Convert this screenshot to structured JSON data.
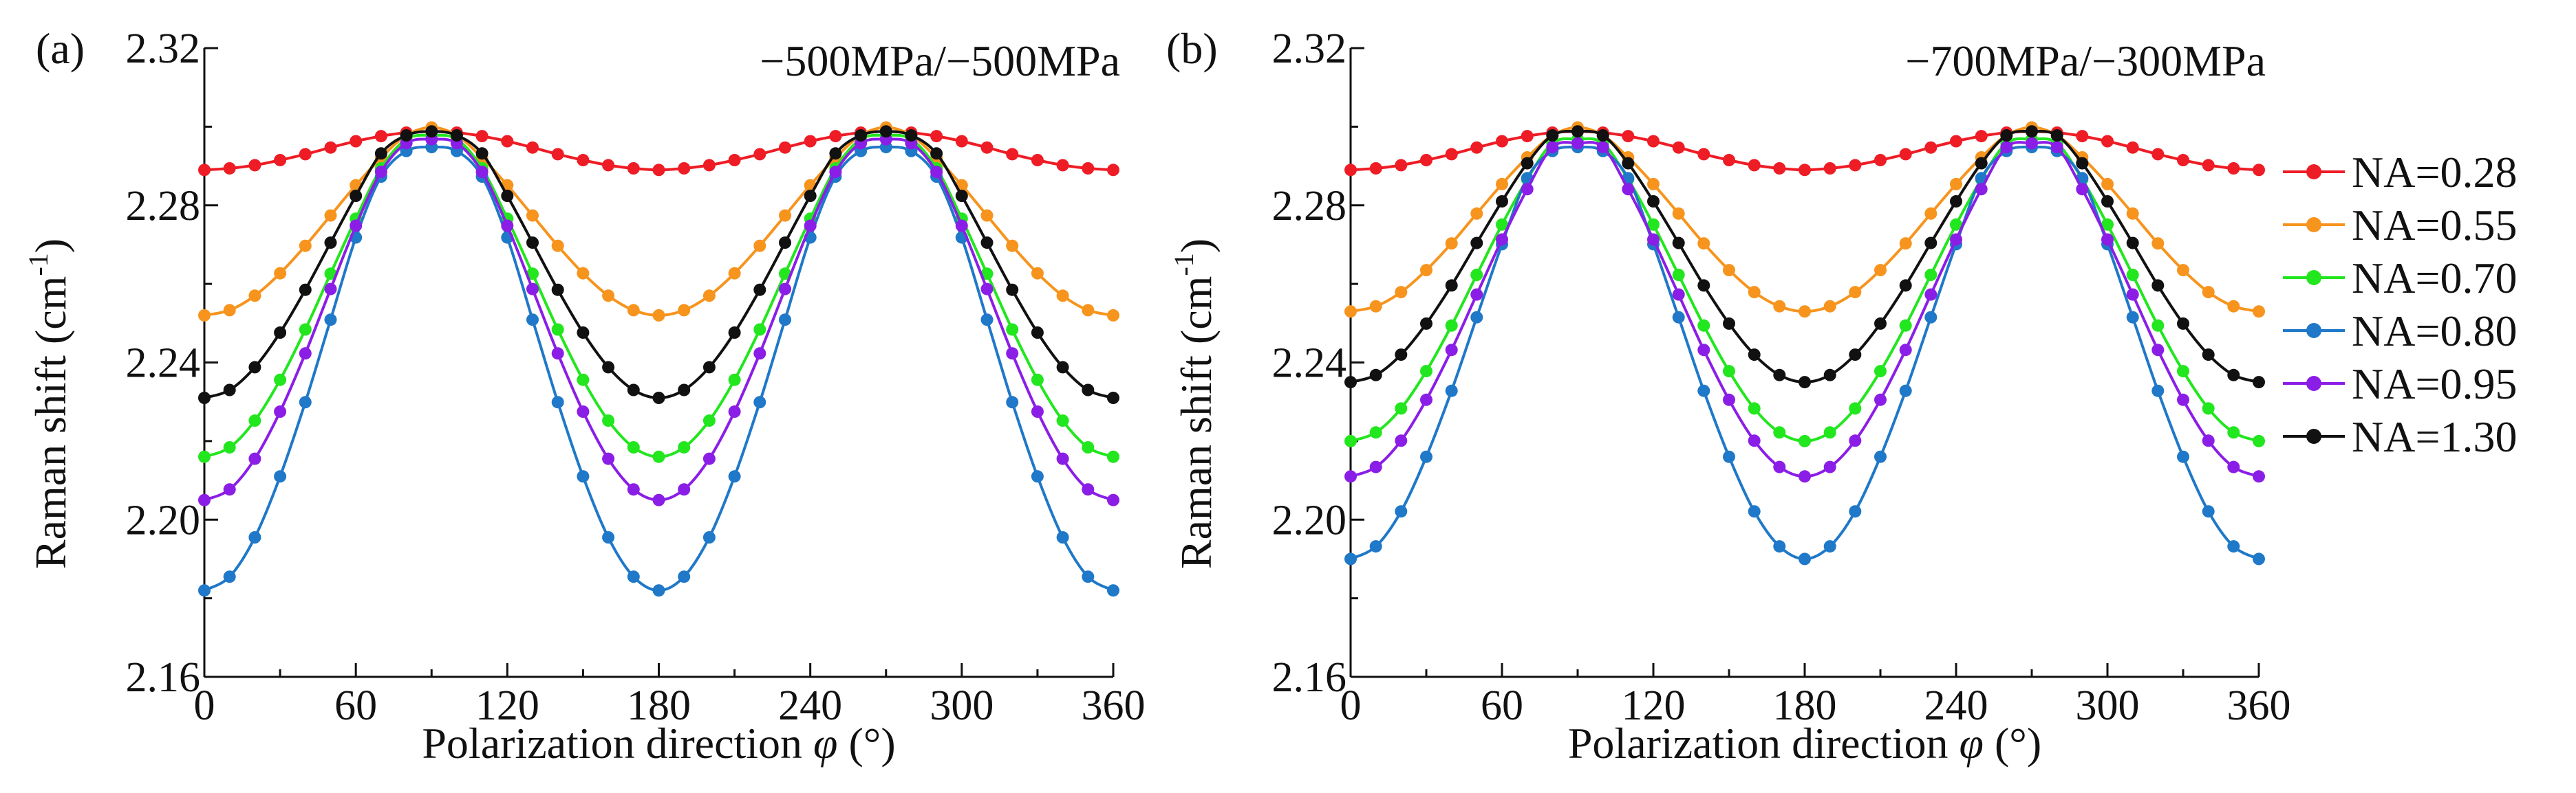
{
  "chart_data": [
    {
      "type": "line",
      "panel_label": "(a)",
      "title": "−500MPa/−500MPa",
      "xlabel_prefix": "Polarization direction ",
      "xlabel_symbol": "φ",
      "xlabel_suffix": " (°)",
      "ylabel_prefix": "Raman shift (cm",
      "ylabel_sup": "-1",
      "ylabel_suffix": ")",
      "xlim": [
        0,
        360
      ],
      "ylim": [
        2.16,
        2.32
      ],
      "xticks": [
        "0",
        "60",
        "120",
        "180",
        "240",
        "300",
        "360"
      ],
      "yticks": [
        "2.16",
        "2.20",
        "2.24",
        "2.28",
        "2.32"
      ],
      "x": [
        0,
        10,
        20,
        30,
        40,
        50,
        60,
        70,
        80,
        90,
        100,
        110,
        120,
        130,
        140,
        150,
        160,
        170,
        180,
        190,
        200,
        210,
        220,
        230,
        240,
        250,
        260,
        270,
        280,
        290,
        300,
        310,
        320,
        330,
        340,
        350,
        360
      ],
      "series": [
        {
          "name": "NA=0.28",
          "color": "#ee1c25",
          "values": [
            2.289,
            2.2894,
            2.2902,
            2.2915,
            2.293,
            2.2947,
            2.2963,
            2.2976,
            2.2985,
            2.2988,
            2.2985,
            2.2976,
            2.2963,
            2.2947,
            2.293,
            2.2915,
            2.2902,
            2.2894,
            2.289,
            2.2894,
            2.2902,
            2.2915,
            2.293,
            2.2947,
            2.2963,
            2.2976,
            2.2985,
            2.2988,
            2.2985,
            2.2976,
            2.2963,
            2.2947,
            2.293,
            2.2915,
            2.2902,
            2.2894,
            2.289
          ]
        },
        {
          "name": "NA=0.55",
          "color": "#f7941d",
          "values": [
            2.252,
            2.2533,
            2.257,
            2.2627,
            2.2697,
            2.2774,
            2.2851,
            2.2921,
            2.2978,
            2.2998,
            2.2978,
            2.2921,
            2.2851,
            2.2774,
            2.2697,
            2.2627,
            2.257,
            2.2533,
            2.252,
            2.2533,
            2.257,
            2.2627,
            2.2697,
            2.2774,
            2.2851,
            2.2921,
            2.2978,
            2.2998,
            2.2978,
            2.2921,
            2.2851,
            2.2774,
            2.2697,
            2.2627,
            2.257,
            2.2533,
            2.252
          ]
        },
        {
          "name": "NA=0.70",
          "color": "#22e61e",
          "values": [
            2.216,
            2.2184,
            2.2252,
            2.2356,
            2.2484,
            2.2626,
            2.2766,
            2.2894,
            2.2968,
            2.2978,
            2.2968,
            2.2894,
            2.2766,
            2.2626,
            2.2484,
            2.2356,
            2.2252,
            2.2184,
            2.216,
            2.2184,
            2.2252,
            2.2356,
            2.2484,
            2.2626,
            2.2766,
            2.2894,
            2.2968,
            2.2978,
            2.2968,
            2.2894,
            2.2766,
            2.2626,
            2.2484,
            2.2356,
            2.2252,
            2.2184,
            2.216
          ]
        },
        {
          "name": "NA=0.80",
          "color": "#1f78c8",
          "values": [
            2.182,
            2.1855,
            2.1955,
            2.211,
            2.2299,
            2.2509,
            2.2718,
            2.2873,
            2.2938,
            2.2948,
            2.2938,
            2.2873,
            2.2718,
            2.2509,
            2.2299,
            2.211,
            2.1955,
            2.1855,
            2.182,
            2.1855,
            2.1955,
            2.211,
            2.2299,
            2.2509,
            2.2718,
            2.2873,
            2.2938,
            2.2948,
            2.2938,
            2.2873,
            2.2718,
            2.2509,
            2.2299,
            2.211,
            2.1955,
            2.1855,
            2.182
          ]
        },
        {
          "name": "NA=0.95",
          "color": "#8b1ee6",
          "values": [
            2.205,
            2.2077,
            2.2155,
            2.2275,
            2.2423,
            2.2587,
            2.2748,
            2.2885,
            2.2958,
            2.2968,
            2.2958,
            2.2885,
            2.2748,
            2.2587,
            2.2423,
            2.2275,
            2.2155,
            2.2077,
            2.205,
            2.2077,
            2.2155,
            2.2275,
            2.2423,
            2.2587,
            2.2748,
            2.2885,
            2.2958,
            2.2968,
            2.2958,
            2.2885,
            2.2748,
            2.2587,
            2.2423,
            2.2275,
            2.2155,
            2.2077,
            2.205
          ]
        },
        {
          "name": "NA=1.30",
          "color": "#111111",
          "values": [
            2.231,
            2.233,
            2.2388,
            2.2476,
            2.2585,
            2.2705,
            2.2824,
            2.2932,
            2.2978,
            2.2988,
            2.2978,
            2.2932,
            2.2824,
            2.2705,
            2.2585,
            2.2476,
            2.2388,
            2.233,
            2.231,
            2.233,
            2.2388,
            2.2476,
            2.2585,
            2.2705,
            2.2824,
            2.2932,
            2.2978,
            2.2988,
            2.2978,
            2.2932,
            2.2824,
            2.2705,
            2.2585,
            2.2476,
            2.2388,
            2.233,
            2.231
          ]
        }
      ]
    },
    {
      "type": "line",
      "panel_label": "(b)",
      "title": "−700MPa/−300MPa",
      "xlabel_prefix": "Polarization direction ",
      "xlabel_symbol": "φ",
      "xlabel_suffix": " (°)",
      "ylabel_prefix": "Raman shift (cm",
      "ylabel_sup": "-1",
      "ylabel_suffix": ")",
      "xlim": [
        0,
        360
      ],
      "ylim": [
        2.16,
        2.32
      ],
      "xticks": [
        "0",
        "60",
        "120",
        "180",
        "240",
        "300",
        "360"
      ],
      "yticks": [
        "2.16",
        "2.20",
        "2.24",
        "2.28",
        "2.32"
      ],
      "x": [
        0,
        10,
        20,
        30,
        40,
        50,
        60,
        70,
        80,
        90,
        100,
        110,
        120,
        130,
        140,
        150,
        160,
        170,
        180,
        190,
        200,
        210,
        220,
        230,
        240,
        250,
        260,
        270,
        280,
        290,
        300,
        310,
        320,
        330,
        340,
        350,
        360
      ],
      "series": [
        {
          "name": "NA=0.28",
          "color": "#ee1c25",
          "values": [
            2.289,
            2.2894,
            2.2902,
            2.2915,
            2.293,
            2.2947,
            2.2963,
            2.2976,
            2.2985,
            2.2988,
            2.2985,
            2.2976,
            2.2963,
            2.2947,
            2.293,
            2.2915,
            2.2902,
            2.2894,
            2.289,
            2.2894,
            2.2902,
            2.2915,
            2.293,
            2.2947,
            2.2963,
            2.2976,
            2.2985,
            2.2988,
            2.2985,
            2.2976,
            2.2963,
            2.2947,
            2.293,
            2.2915,
            2.2902,
            2.2894,
            2.289
          ]
        },
        {
          "name": "NA=0.55",
          "color": "#f7941d",
          "values": [
            2.253,
            2.2543,
            2.2579,
            2.2635,
            2.2703,
            2.2779,
            2.2854,
            2.2922,
            2.2978,
            2.2998,
            2.2978,
            2.2922,
            2.2854,
            2.2779,
            2.2703,
            2.2635,
            2.2579,
            2.2543,
            2.253,
            2.2543,
            2.2579,
            2.2635,
            2.2703,
            2.2779,
            2.2854,
            2.2922,
            2.2978,
            2.2998,
            2.2978,
            2.2922,
            2.2854,
            2.2779,
            2.2703,
            2.2635,
            2.2579,
            2.2543,
            2.253
          ]
        },
        {
          "name": "NA=0.70",
          "color": "#22e61e",
          "values": [
            2.22,
            2.2222,
            2.2283,
            2.2378,
            2.2494,
            2.2623,
            2.2751,
            2.2866,
            2.2958,
            2.2968,
            2.2958,
            2.2866,
            2.2751,
            2.2623,
            2.2494,
            2.2378,
            2.2283,
            2.2222,
            2.22,
            2.2222,
            2.2283,
            2.2378,
            2.2494,
            2.2623,
            2.2751,
            2.2866,
            2.2958,
            2.2968,
            2.2958,
            2.2866,
            2.2751,
            2.2623,
            2.2494,
            2.2378,
            2.2283,
            2.2222,
            2.22
          ]
        },
        {
          "name": "NA=0.80",
          "color": "#1f78c8",
          "values": [
            2.19,
            2.1932,
            2.2021,
            2.216,
            2.2328,
            2.2515,
            2.2701,
            2.2869,
            2.2938,
            2.2948,
            2.2938,
            2.2869,
            2.2701,
            2.2515,
            2.2328,
            2.216,
            2.2021,
            2.1932,
            2.19,
            2.1932,
            2.2021,
            2.216,
            2.2328,
            2.2515,
            2.2701,
            2.2869,
            2.2938,
            2.2948,
            2.2938,
            2.2869,
            2.2701,
            2.2515,
            2.2328,
            2.216,
            2.2021,
            2.1932,
            2.19
          ]
        },
        {
          "name": "NA=0.95",
          "color": "#8b1ee6",
          "values": [
            2.211,
            2.2134,
            2.2201,
            2.2305,
            2.2432,
            2.2573,
            2.2713,
            2.2841,
            2.2948,
            2.2958,
            2.2948,
            2.2841,
            2.2713,
            2.2573,
            2.2432,
            2.2305,
            2.2201,
            2.2134,
            2.211,
            2.2134,
            2.2201,
            2.2305,
            2.2432,
            2.2573,
            2.2713,
            2.2841,
            2.2948,
            2.2958,
            2.2948,
            2.2841,
            2.2713,
            2.2573,
            2.2432,
            2.2305,
            2.2201,
            2.2134,
            2.211
          ]
        },
        {
          "name": "NA=1.30",
          "color": "#111111",
          "values": [
            2.235,
            2.2368,
            2.242,
            2.2499,
            2.2596,
            2.2704,
            2.281,
            2.2907,
            2.2978,
            2.2988,
            2.2978,
            2.2907,
            2.281,
            2.2704,
            2.2596,
            2.2499,
            2.242,
            2.2368,
            2.235,
            2.2368,
            2.242,
            2.2499,
            2.2596,
            2.2704,
            2.281,
            2.2907,
            2.2978,
            2.2988,
            2.2978,
            2.2907,
            2.281,
            2.2704,
            2.2596,
            2.2499,
            2.242,
            2.2368,
            2.235
          ]
        }
      ]
    }
  ],
  "legend": {
    "placement": "right",
    "entries": [
      {
        "label": "NA=0.28",
        "color": "#ee1c25"
      },
      {
        "label": "NA=0.55",
        "color": "#f7941d"
      },
      {
        "label": "NA=0.70",
        "color": "#22e61e"
      },
      {
        "label": "NA=0.80",
        "color": "#1f78c8"
      },
      {
        "label": "NA=0.95",
        "color": "#8b1ee6"
      },
      {
        "label": "NA=1.30",
        "color": "#111111"
      }
    ]
  }
}
